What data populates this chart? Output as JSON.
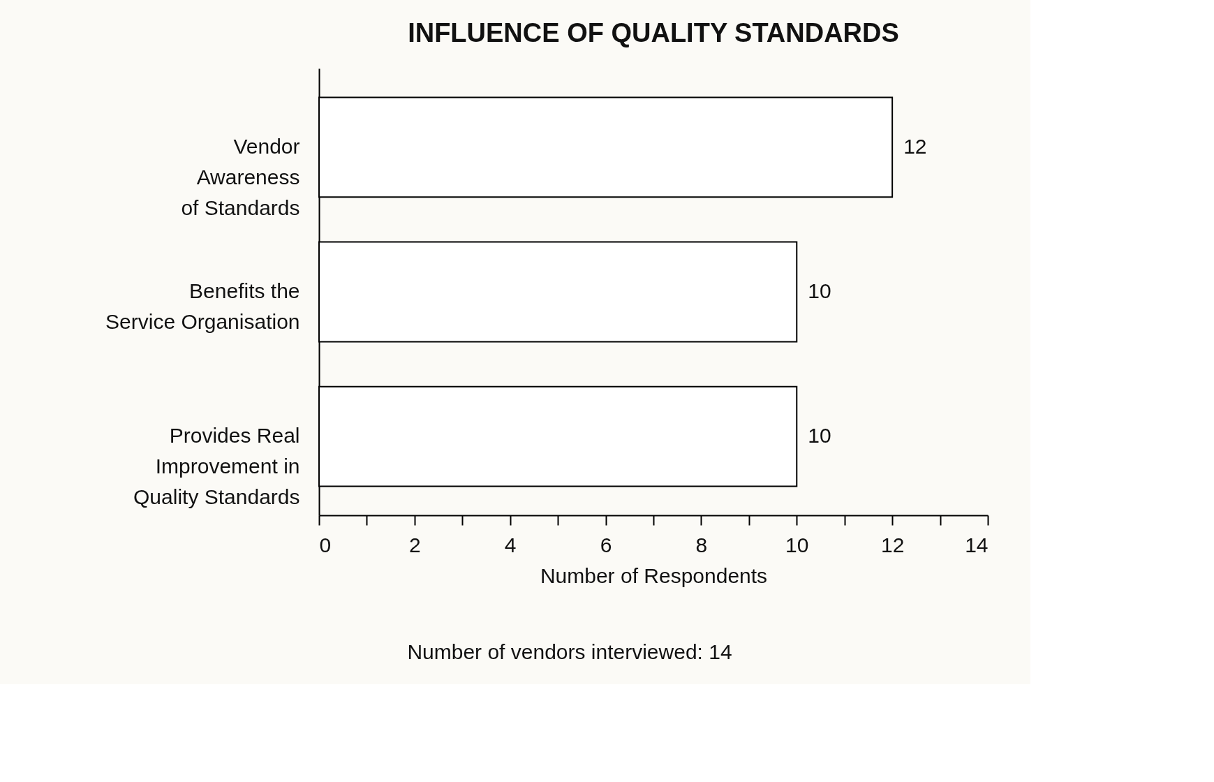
{
  "chart_data": {
    "type": "bar",
    "orientation": "horizontal",
    "title": "INFLUENCE OF QUALITY STANDARDS",
    "xlabel": "Number of Respondents",
    "categories": [
      "Vendor\nAwareness\nof Standards",
      "Benefits the\nService Organisation",
      "Provides Real\nImprovement in\nQuality Standards"
    ],
    "values": [
      12,
      10,
      10
    ],
    "color": "#ffffff",
    "data_labels": true,
    "xlim": [
      0,
      14
    ],
    "xticks": [
      0,
      {
        "value": 1,
        "label": null
      },
      2,
      {
        "value": 3,
        "label": null
      },
      4,
      {
        "value": 5,
        "label": null
      },
      6,
      {
        "value": 7,
        "label": null
      },
      8,
      {
        "value": 9,
        "label": null
      },
      10,
      {
        "value": 11,
        "label": null
      },
      12,
      {
        "value": 13,
        "label": null
      },
      14
    ],
    "grid": false,
    "annotations": [
      "Number of vendors interviewed:  14"
    ]
  }
}
